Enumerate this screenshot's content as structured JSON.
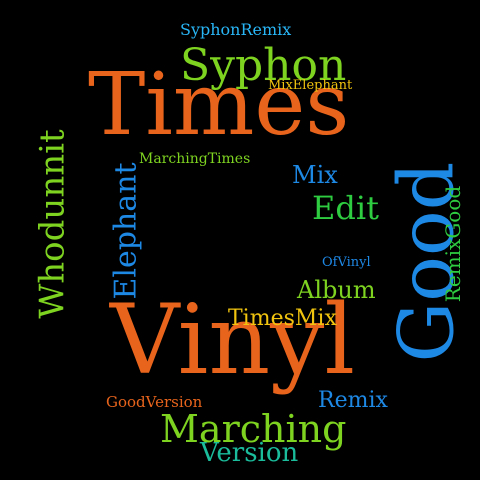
{
  "colors": {
    "background": "#000000",
    "orange": "#e8641c",
    "lime": "#7ed321",
    "green": "#2ecc40",
    "blue": "#1e88e5",
    "cyan": "#29b6f6",
    "yellow": "#f1c40f",
    "teal": "#1abc9c"
  },
  "words": [
    {
      "text": "Times",
      "color": "orange"
    },
    {
      "text": "Vinyl",
      "color": "orange"
    },
    {
      "text": "Good",
      "color": "blue"
    },
    {
      "text": "Whodunnit",
      "color": "lime"
    },
    {
      "text": "Syphon",
      "color": "lime"
    },
    {
      "text": "Elephant",
      "color": "blue"
    },
    {
      "text": "Marching",
      "color": "lime"
    },
    {
      "text": "Edit",
      "color": "green"
    },
    {
      "text": "Album",
      "color": "lime"
    },
    {
      "text": "TimesMix",
      "color": "yellow"
    },
    {
      "text": "Mix",
      "color": "blue"
    },
    {
      "text": "Remix",
      "color": "blue"
    },
    {
      "text": "Version",
      "color": "teal"
    },
    {
      "text": "RemixGood",
      "color": "green"
    },
    {
      "text": "SyphonRemix",
      "color": "cyan"
    },
    {
      "text": "MarchingTimes",
      "color": "lime"
    },
    {
      "text": "MixElephant",
      "color": "yellow"
    },
    {
      "text": "OfVinyl",
      "color": "blue"
    },
    {
      "text": "GoodVersion",
      "color": "orange"
    }
  ]
}
